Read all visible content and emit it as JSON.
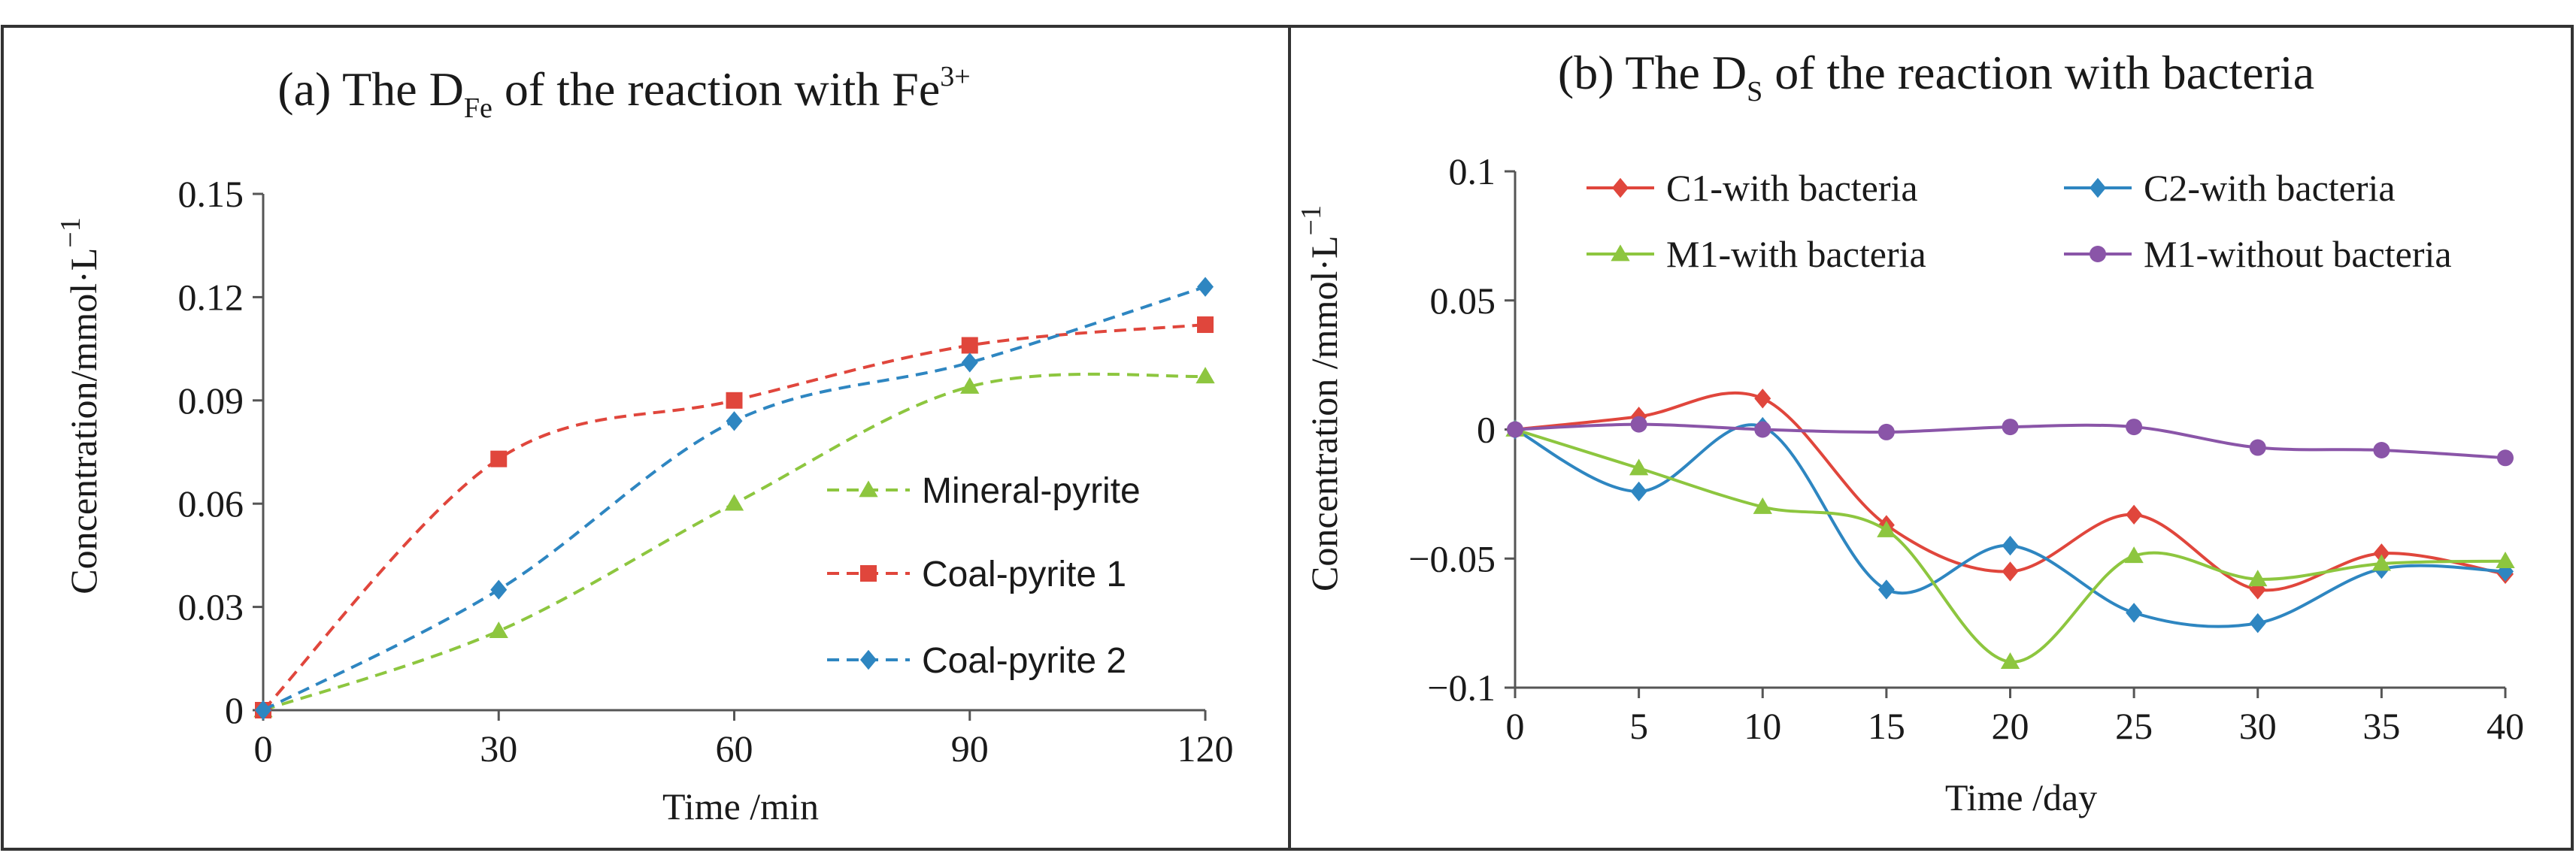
{
  "panels_border": "#333333",
  "chart_data": [
    {
      "type": "line",
      "title": {
        "prefix": "(a) The D",
        "sub": "Fe",
        "middle": " of the reaction with Fe",
        "sup": "3+"
      },
      "xlabel": "Time /min",
      "ylabel": {
        "main": "Concentration/mmol·L",
        "sup": "−1"
      },
      "x": [
        0,
        30,
        60,
        90,
        120
      ],
      "x_ticks": [
        "0",
        "30",
        "60",
        "90",
        "120"
      ],
      "xlim": [
        0,
        120
      ],
      "ylim": [
        0,
        0.15
      ],
      "y_ticks": [
        "0",
        "0.03",
        "0.06",
        "0.09",
        "0.12",
        "0.15"
      ],
      "y_tick_values": [
        0,
        0.03,
        0.06,
        0.09,
        0.12,
        0.15
      ],
      "grid": false,
      "legend_position": "right",
      "series": [
        {
          "name": "Mineral-pyrite",
          "color": "#8dc63f",
          "marker": "triangle",
          "dash": true,
          "values": [
            0,
            0.023,
            0.06,
            0.094,
            0.097
          ]
        },
        {
          "name": "Coal-pyrite 1",
          "color": "#e0463c",
          "marker": "square",
          "dash": true,
          "values": [
            0,
            0.073,
            0.09,
            0.106,
            0.112
          ]
        },
        {
          "name": "Coal-pyrite 2",
          "color": "#2e86c1",
          "marker": "diamond",
          "dash": true,
          "values": [
            0,
            0.035,
            0.084,
            0.101,
            0.123
          ]
        }
      ]
    },
    {
      "type": "line",
      "title": {
        "prefix": "(b) The D",
        "sub": "S",
        "middle": " of the reaction with bacteria",
        "sup": ""
      },
      "xlabel": "Time /day",
      "ylabel": {
        "main": "Concentration /mmol·L",
        "sup": "−1"
      },
      "x": [
        0,
        5,
        10,
        15,
        20,
        25,
        30,
        35,
        40
      ],
      "x_ticks": [
        "0",
        "5",
        "10",
        "15",
        "20",
        "25",
        "30",
        "35",
        "40"
      ],
      "xlim": [
        0,
        40
      ],
      "ylim": [
        -0.1,
        0.1
      ],
      "y_ticks": [
        "−0.1",
        "−0.05",
        "0",
        "0.05",
        "0.1"
      ],
      "y_tick_values": [
        -0.1,
        -0.05,
        0,
        0.05,
        0.1
      ],
      "grid": false,
      "legend_position": "top",
      "series": [
        {
          "name": "C1-with bacteria",
          "color": "#e0463c",
          "marker": "diamond",
          "dash": false,
          "values": [
            0,
            0.005,
            0.012,
            -0.037,
            -0.055,
            -0.033,
            -0.062,
            -0.048,
            -0.056
          ]
        },
        {
          "name": "C2-with bacteria",
          "color": "#2e86c1",
          "marker": "diamond",
          "dash": false,
          "values": [
            0,
            -0.024,
            0.001,
            -0.062,
            -0.045,
            -0.071,
            -0.075,
            -0.054,
            -0.055
          ]
        },
        {
          "name": "M1-with bacteria",
          "color": "#8dc63f",
          "marker": "triangle",
          "dash": false,
          "values": [
            0,
            -0.015,
            -0.03,
            -0.039,
            -0.09,
            -0.049,
            -0.058,
            -0.052,
            -0.051
          ]
        },
        {
          "name": "M1-without bacteria",
          "color": "#8a55a8",
          "marker": "circle",
          "dash": false,
          "values": [
            0,
            0.002,
            0,
            -0.001,
            0.001,
            0.001,
            -0.007,
            -0.008,
            -0.011
          ]
        }
      ]
    }
  ]
}
